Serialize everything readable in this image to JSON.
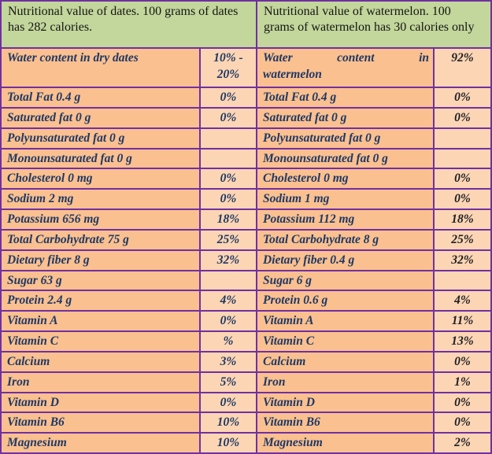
{
  "colors": {
    "border": "#7030A0",
    "header_bg": "#C3D69B",
    "label_bg": "#FAC090",
    "value_bg": "#FCD5B4",
    "header_text": "#151515",
    "body_text": "#1F3864",
    "melon_value_text": "#1F1F24"
  },
  "tables": [
    {
      "id": "dates",
      "header": "Nutritional value of dates. 100 grams of dates has 282 calories.",
      "rows": [
        {
          "label": "Water content in dry dates",
          "value": "10% - 20%"
        },
        {
          "label": "Total Fat 0.4 g",
          "value": "0%"
        },
        {
          "label": "Saturated fat 0 g",
          "value": "0%"
        },
        {
          "label": "Polyunsaturated fat 0 g",
          "value": ""
        },
        {
          "label": "Monounsaturated fat 0 g",
          "value": ""
        },
        {
          "label": "Cholesterol 0 mg",
          "value": "0%"
        },
        {
          "label": "Sodium 2 mg",
          "value": "0%"
        },
        {
          "label": "Potassium 656 mg",
          "value": "18%"
        },
        {
          "label": "Total Carbohydrate 75 g",
          "value": "25%"
        },
        {
          "label": "Dietary fiber 8 g",
          "value": "32%"
        },
        {
          "label": "Sugar 63 g",
          "value": ""
        },
        {
          "label": "Protein 2.4 g",
          "value": "4%"
        },
        {
          "label": "Vitamin A",
          "value": "0%"
        },
        {
          "label": "Vitamin C",
          "value": "%"
        },
        {
          "label": "Calcium",
          "value": "3%"
        },
        {
          "label": "Iron",
          "value": "5%"
        },
        {
          "label": "Vitamin D",
          "value": "0%"
        },
        {
          "label": "Vitamin B6",
          "value": "10%"
        },
        {
          "label": "Magnesium",
          "value": "10%"
        }
      ]
    },
    {
      "id": "watermelon",
      "header": "Nutritional value of watermelon. 100 grams of watermelon has 30 calories only",
      "rows": [
        {
          "label": "Water content in watermelon",
          "value": "92%"
        },
        {
          "label": "Total Fat 0.4 g",
          "value": "0%"
        },
        {
          "label": "Saturated fat 0 g",
          "value": "0%"
        },
        {
          "label": "Polyunsaturated fat 0 g",
          "value": ""
        },
        {
          "label": "Monounsaturated fat 0 g",
          "value": ""
        },
        {
          "label": "Cholesterol 0 mg",
          "value": "0%"
        },
        {
          "label": "Sodium 1 mg",
          "value": "0%"
        },
        {
          "label": "Potassium 112 mg",
          "value": "18%"
        },
        {
          "label": "Total Carbohydrate 8 g",
          "value": "25%"
        },
        {
          "label": "Dietary fiber 0.4 g",
          "value": "32%"
        },
        {
          "label": "Sugar 6 g",
          "value": ""
        },
        {
          "label": "Protein 0.6 g",
          "value": "4%"
        },
        {
          "label": "Vitamin A",
          "value": "11%"
        },
        {
          "label": "Vitamin C",
          "value": "13%"
        },
        {
          "label": "Calcium",
          "value": "0%"
        },
        {
          "label": "Iron",
          "value": "1%"
        },
        {
          "label": "Vitamin D",
          "value": "0%"
        },
        {
          "label": "Vitamin B6",
          "value": "0%"
        },
        {
          "label": "Magnesium",
          "value": "2%"
        }
      ]
    }
  ]
}
